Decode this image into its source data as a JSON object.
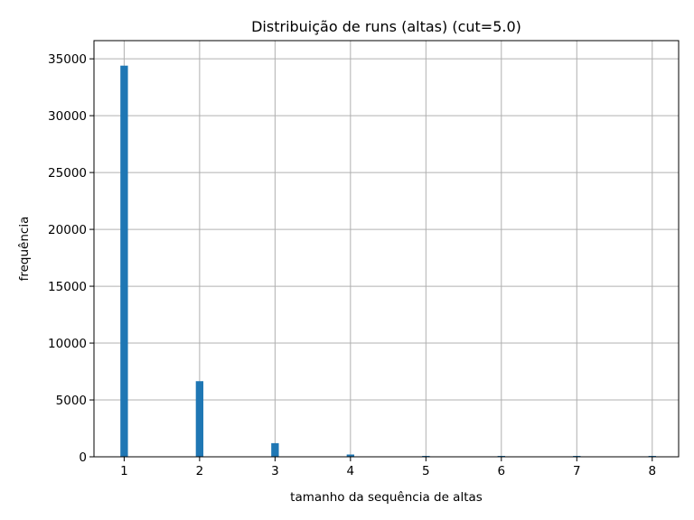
{
  "chart_data": {
    "type": "bar",
    "title": "Distribuição de runs (altas)  (cut=5.0)",
    "xlabel": "tamanho da sequência de altas",
    "ylabel": "frequência",
    "x": [
      1,
      2,
      3,
      4,
      5,
      6,
      7,
      8
    ],
    "values": [
      34400,
      6650,
      1200,
      200,
      35,
      8,
      2,
      1
    ],
    "bin_width": 0.14,
    "xlim": [
      0.6,
      8.35
    ],
    "ylim": [
      0,
      36600
    ],
    "xticks": [
      1,
      2,
      3,
      4,
      5,
      6,
      7,
      8
    ],
    "xtick_labels": [
      "1",
      "2",
      "3",
      "4",
      "5",
      "6",
      "7",
      "8"
    ],
    "yticks": [
      0,
      5000,
      10000,
      15000,
      20000,
      25000,
      30000,
      35000
    ],
    "ytick_labels": [
      "0",
      "5000",
      "10000",
      "15000",
      "20000",
      "25000",
      "30000",
      "35000"
    ],
    "grid": true,
    "bar_color": "#1f77b4"
  }
}
